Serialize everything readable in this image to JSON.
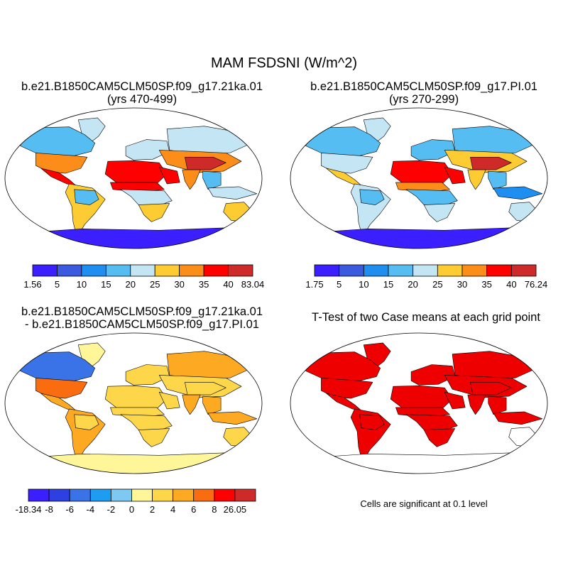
{
  "title": "MAM FSDSNI (W/m^2)",
  "colors": {
    "ocean": "#ffffff",
    "coast": "#000000",
    "sig_fill": "#ee0000"
  },
  "chart_data": [
    {
      "type": "heatmap",
      "projection": "robinson",
      "title_lines": [
        "b.e21.B1850CAM5CLM50SP.f09_g17.21ka.01",
        "(yrs 470-499)"
      ],
      "colorbar": {
        "min_label": "1.56",
        "max_label": "83.04",
        "levels": [
          "5",
          "10",
          "15",
          "20",
          "25",
          "30",
          "35",
          "40"
        ],
        "colors": [
          "#3c1fff",
          "#3a5ae0",
          "#1e8ff0",
          "#55bdf2",
          "#c4e6f4",
          "#fdcc32",
          "#fb8d18",
          "#ff0000",
          "#cf2a2a"
        ]
      },
      "regions": {
        "greenland": 22,
        "canada": 20,
        "usa": 33,
        "mexico": 36,
        "south_america": 29,
        "amazon": 20,
        "europe": 22,
        "siberia": 25,
        "central_asia": 32,
        "tibet": 41,
        "sahara": 40,
        "sahel": 36,
        "central_africa": 24,
        "southern_africa": 30,
        "arabia": 38,
        "india": 33,
        "southeast_asia": 20,
        "indonesia": 22,
        "australia": 30,
        "antarctica": 3
      }
    },
    {
      "type": "heatmap",
      "projection": "robinson",
      "title_lines": [
        "b.e21.B1850CAM5CLM50SP.f09_g17.PI.01",
        "(yrs 270-299)"
      ],
      "colorbar": {
        "min_label": "1.75",
        "max_label": "76.24",
        "levels": [
          "5",
          "10",
          "15",
          "20",
          "25",
          "30",
          "35",
          "40"
        ],
        "colors": [
          "#3c1fff",
          "#3a5ae0",
          "#1e8ff0",
          "#55bdf2",
          "#c4e6f4",
          "#fdcc32",
          "#fb8d18",
          "#ff0000",
          "#cf2a2a"
        ]
      },
      "regions": {
        "greenland": 22,
        "canada": 17,
        "usa": 22,
        "mexico": 30,
        "south_america": 22,
        "amazon": 16,
        "europe": 17,
        "siberia": 18,
        "central_asia": 28,
        "tibet": 41,
        "sahara": 39,
        "sahel": 33,
        "central_africa": 18,
        "southern_africa": 24,
        "arabia": 37,
        "india": 28,
        "southeast_asia": 16,
        "indonesia": 15,
        "australia": 24,
        "antarctica": 3
      }
    },
    {
      "type": "heatmap",
      "projection": "robinson",
      "title_lines": [
        "b.e21.B1850CAM5CLM50SP.f09_g17.21ka.01",
        "- b.e21.B1850CAM5CLM50SP.f09_g17.PI.01"
      ],
      "colorbar": {
        "min_label": "-18.34",
        "max_label": "26.05",
        "levels": [
          "-8",
          "-6",
          "-4",
          "-2",
          "0",
          "2",
          "4",
          "6",
          "8"
        ],
        "colors": [
          "#3c1fff",
          "#2f40e2",
          "#3a72e8",
          "#1e9cf0",
          "#7dc9f2",
          "#fff69a",
          "#fdd64a",
          "#fdaa22",
          "#fa6c10",
          "#ff0000",
          "#cf2a2a"
        ]
      },
      "regions": {
        "greenland": 2,
        "canada": -5,
        "usa": 7,
        "mexico": 5,
        "south_america": 5,
        "amazon": 4,
        "europe": 3,
        "siberia": 5,
        "central_asia": 4,
        "tibet": 3,
        "sahara": 4,
        "sahel": 3,
        "central_africa": 4,
        "southern_africa": 4,
        "arabia": 3,
        "india": 5,
        "southeast_asia": 5,
        "indonesia": 6,
        "australia": 3,
        "antarctica": 1
      }
    },
    {
      "type": "heatmap",
      "projection": "robinson",
      "title_lines": [
        "T-Test of two Case means at each grid point"
      ],
      "note": "Cells are significant at 0.1 level",
      "significant_fraction": 0.9
    }
  ]
}
